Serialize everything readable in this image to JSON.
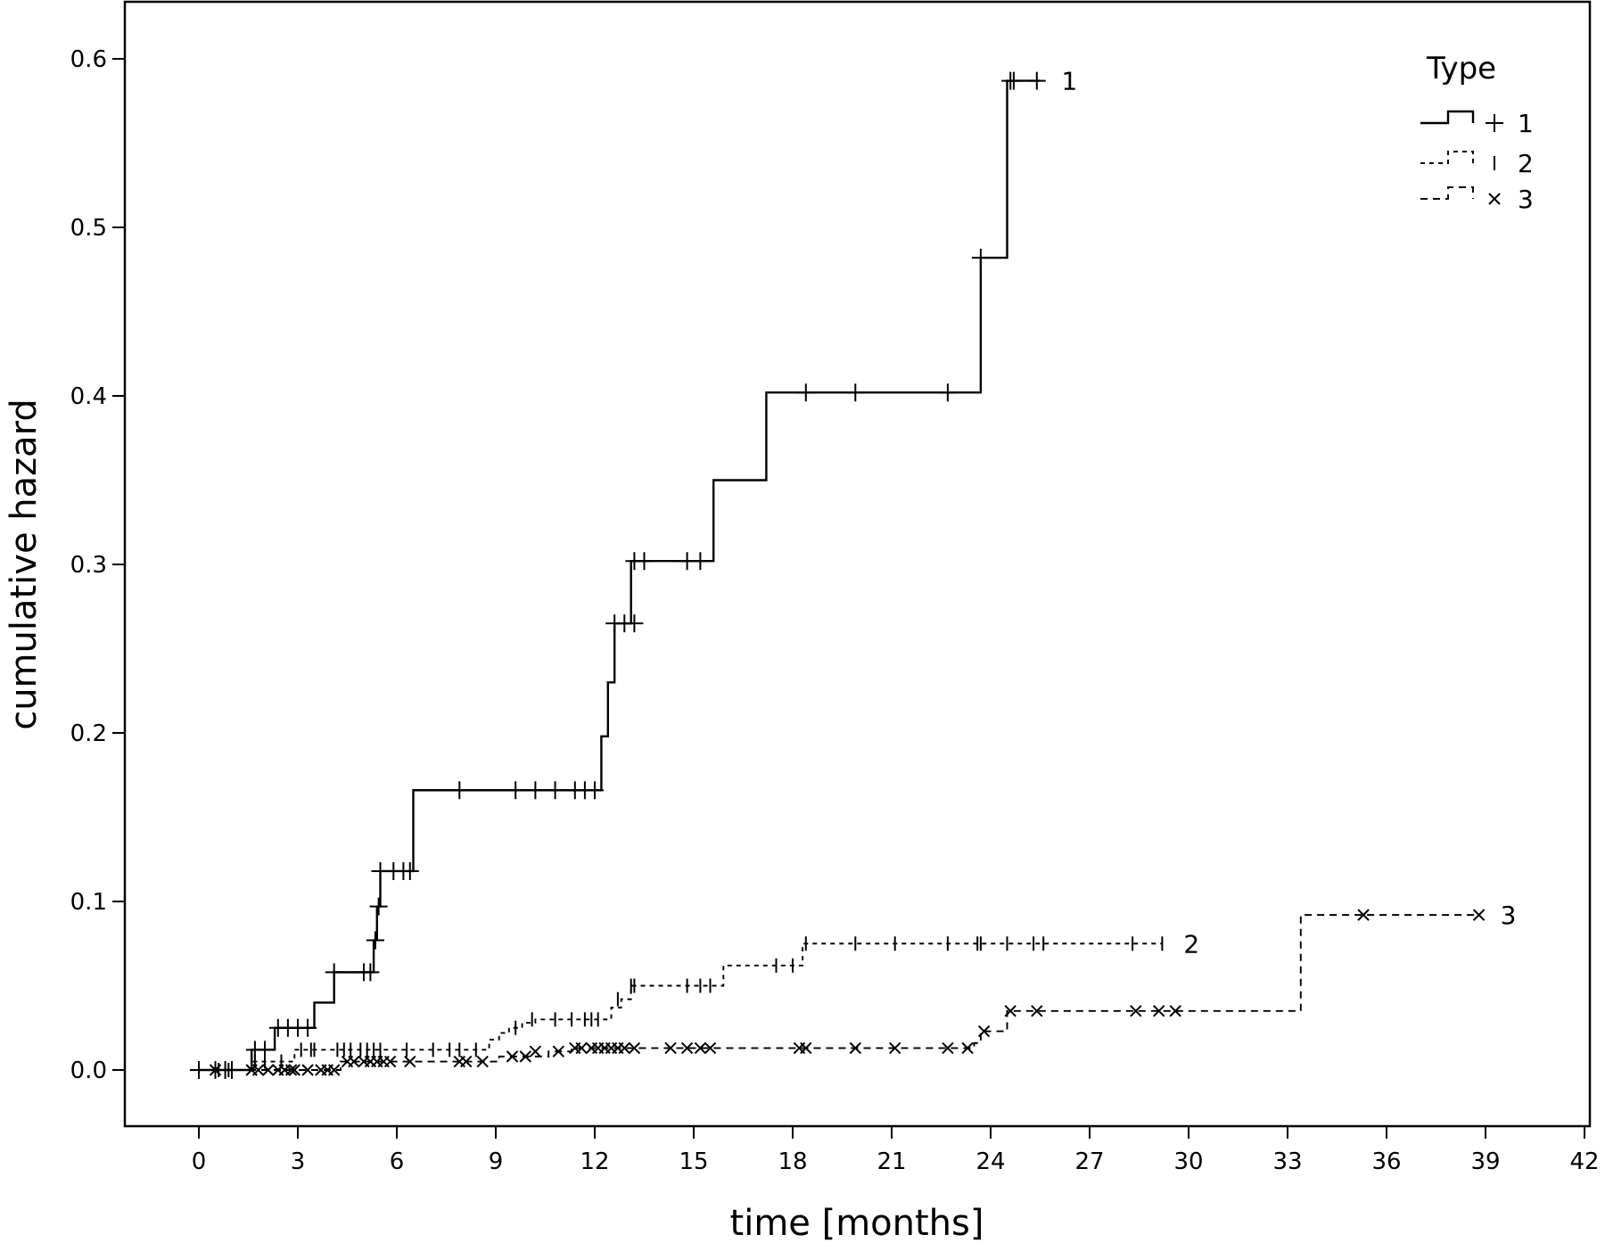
{
  "chart_data": {
    "type": "line",
    "step": true,
    "xlabel": "time [months]",
    "ylabel": "cumulative hazard",
    "xlim": [
      -4.3,
      42
    ],
    "ylim": [
      -0.033,
      0.633
    ],
    "xticks": [
      0,
      3,
      6,
      9,
      12,
      15,
      18,
      21,
      24,
      27,
      30,
      33,
      36,
      39,
      42
    ],
    "xtick_labels": [
      "0",
      "3",
      "6",
      "9",
      "12",
      "15",
      "18",
      "21",
      "24",
      "27",
      "30",
      "33",
      "36",
      "39",
      "42"
    ],
    "yticks": [
      0.0,
      0.1,
      0.2,
      0.3,
      0.4,
      0.5,
      0.6
    ],
    "ytick_labels": [
      "0.0",
      "0.1",
      "0.2",
      "0.3",
      "0.4",
      "0.5",
      "0.6"
    ],
    "grid": false,
    "legend": {
      "title": "Type",
      "position": "top-right",
      "entries": [
        {
          "label": "1",
          "line": "solid",
          "marker": "+"
        },
        {
          "label": "2",
          "line": "short-dash",
          "marker": "|"
        },
        {
          "label": "3",
          "line": "dash",
          "marker": "x"
        }
      ]
    },
    "series": [
      {
        "name": "1",
        "line": "solid",
        "marker": "+",
        "end_label": "1",
        "steps": [
          [
            0,
            0.0
          ],
          [
            1.6,
            0.012
          ],
          [
            2.3,
            0.025
          ],
          [
            3.5,
            0.04
          ],
          [
            4.1,
            0.058
          ],
          [
            5.3,
            0.077
          ],
          [
            5.4,
            0.097
          ],
          [
            5.5,
            0.118
          ],
          [
            6.5,
            0.166
          ],
          [
            12.2,
            0.198
          ],
          [
            12.4,
            0.23
          ],
          [
            12.6,
            0.265
          ],
          [
            13.1,
            0.302
          ],
          [
            15.6,
            0.35
          ],
          [
            17.2,
            0.402
          ],
          [
            23.7,
            0.482
          ],
          [
            24.5,
            0.587
          ]
        ],
        "end_x": 25.5,
        "censor_points": [
          [
            0,
            0.0
          ],
          [
            0.5,
            0.0
          ],
          [
            0.8,
            0.0
          ],
          [
            1.0,
            0.0
          ],
          [
            1.7,
            0.012
          ],
          [
            2.0,
            0.012
          ],
          [
            2.4,
            0.025
          ],
          [
            2.7,
            0.025
          ],
          [
            3.0,
            0.025
          ],
          [
            3.3,
            0.025
          ],
          [
            4.1,
            0.058
          ],
          [
            5.0,
            0.058
          ],
          [
            5.2,
            0.058
          ],
          [
            5.35,
            0.077
          ],
          [
            5.45,
            0.097
          ],
          [
            5.5,
            0.118
          ],
          [
            5.9,
            0.118
          ],
          [
            6.2,
            0.118
          ],
          [
            6.4,
            0.118
          ],
          [
            7.9,
            0.166
          ],
          [
            9.6,
            0.166
          ],
          [
            10.2,
            0.166
          ],
          [
            10.8,
            0.166
          ],
          [
            11.4,
            0.166
          ],
          [
            11.7,
            0.166
          ],
          [
            12.0,
            0.166
          ],
          [
            12.6,
            0.265
          ],
          [
            12.9,
            0.265
          ],
          [
            13.2,
            0.265
          ],
          [
            13.2,
            0.302
          ],
          [
            13.5,
            0.302
          ],
          [
            14.8,
            0.302
          ],
          [
            15.2,
            0.302
          ],
          [
            18.4,
            0.402
          ],
          [
            19.9,
            0.402
          ],
          [
            22.7,
            0.402
          ],
          [
            23.7,
            0.482
          ],
          [
            24.6,
            0.587
          ],
          [
            24.7,
            0.587
          ],
          [
            25.4,
            0.587
          ]
        ]
      },
      {
        "name": "2",
        "line": "short-dash",
        "marker": "|",
        "end_label": "2",
        "steps": [
          [
            0,
            0.0
          ],
          [
            1.6,
            0.005
          ],
          [
            2.9,
            0.012
          ],
          [
            8.8,
            0.018
          ],
          [
            9.1,
            0.022
          ],
          [
            9.4,
            0.025
          ],
          [
            9.8,
            0.028
          ],
          [
            10.2,
            0.03
          ],
          [
            12.5,
            0.037
          ],
          [
            12.8,
            0.042
          ],
          [
            13.1,
            0.05
          ],
          [
            15.9,
            0.062
          ],
          [
            18.3,
            0.075
          ]
        ],
        "end_x": 29.2,
        "censor_points": [
          [
            0.6,
            0.0
          ],
          [
            0.9,
            0.0
          ],
          [
            1.7,
            0.005
          ],
          [
            2.0,
            0.005
          ],
          [
            2.5,
            0.005
          ],
          [
            3.1,
            0.012
          ],
          [
            3.4,
            0.012
          ],
          [
            3.5,
            0.012
          ],
          [
            4.2,
            0.012
          ],
          [
            4.4,
            0.012
          ],
          [
            4.6,
            0.012
          ],
          [
            4.9,
            0.012
          ],
          [
            5.1,
            0.012
          ],
          [
            5.3,
            0.012
          ],
          [
            5.5,
            0.012
          ],
          [
            6.3,
            0.012
          ],
          [
            7.1,
            0.012
          ],
          [
            7.6,
            0.012
          ],
          [
            7.9,
            0.012
          ],
          [
            8.4,
            0.012
          ],
          [
            9.6,
            0.025
          ],
          [
            10.1,
            0.03
          ],
          [
            10.8,
            0.03
          ],
          [
            11.3,
            0.03
          ],
          [
            11.7,
            0.03
          ],
          [
            11.9,
            0.03
          ],
          [
            12.1,
            0.03
          ],
          [
            12.7,
            0.042
          ],
          [
            13.1,
            0.05
          ],
          [
            13.2,
            0.05
          ],
          [
            14.8,
            0.05
          ],
          [
            15.2,
            0.05
          ],
          [
            15.5,
            0.05
          ],
          [
            17.5,
            0.062
          ],
          [
            18.0,
            0.062
          ],
          [
            18.4,
            0.075
          ],
          [
            19.9,
            0.075
          ],
          [
            21.1,
            0.075
          ],
          [
            22.7,
            0.075
          ],
          [
            23.6,
            0.075
          ],
          [
            23.7,
            0.075
          ],
          [
            24.5,
            0.075
          ],
          [
            25.3,
            0.075
          ],
          [
            25.6,
            0.075
          ],
          [
            28.3,
            0.075
          ],
          [
            29.2,
            0.075
          ]
        ]
      },
      {
        "name": "3",
        "line": "dash",
        "marker": "x",
        "end_label": "3",
        "steps": [
          [
            0,
            0.0
          ],
          [
            4.3,
            0.005
          ],
          [
            9.1,
            0.008
          ],
          [
            10.6,
            0.011
          ],
          [
            11.3,
            0.013
          ],
          [
            23.5,
            0.016
          ],
          [
            23.7,
            0.023
          ],
          [
            24.5,
            0.035
          ],
          [
            33.4,
            0.092
          ]
        ],
        "end_x": 38.8,
        "censor_points": [
          [
            0.5,
            0.0
          ],
          [
            1.6,
            0.0
          ],
          [
            1.8,
            0.0
          ],
          [
            2.1,
            0.0
          ],
          [
            2.4,
            0.0
          ],
          [
            2.6,
            0.0
          ],
          [
            2.8,
            0.0
          ],
          [
            2.9,
            0.0
          ],
          [
            3.3,
            0.0
          ],
          [
            3.7,
            0.0
          ],
          [
            3.9,
            0.0
          ],
          [
            4.1,
            0.0
          ],
          [
            4.5,
            0.005
          ],
          [
            4.7,
            0.005
          ],
          [
            5.0,
            0.005
          ],
          [
            5.2,
            0.005
          ],
          [
            5.4,
            0.005
          ],
          [
            5.6,
            0.005
          ],
          [
            5.8,
            0.005
          ],
          [
            6.4,
            0.005
          ],
          [
            7.9,
            0.005
          ],
          [
            8.1,
            0.005
          ],
          [
            8.6,
            0.005
          ],
          [
            9.5,
            0.008
          ],
          [
            9.9,
            0.008
          ],
          [
            10.2,
            0.011
          ],
          [
            10.9,
            0.011
          ],
          [
            11.4,
            0.013
          ],
          [
            11.6,
            0.013
          ],
          [
            11.9,
            0.013
          ],
          [
            12.1,
            0.013
          ],
          [
            12.3,
            0.013
          ],
          [
            12.5,
            0.013
          ],
          [
            12.7,
            0.013
          ],
          [
            12.9,
            0.013
          ],
          [
            13.2,
            0.013
          ],
          [
            14.3,
            0.013
          ],
          [
            14.8,
            0.013
          ],
          [
            15.2,
            0.013
          ],
          [
            15.5,
            0.013
          ],
          [
            18.2,
            0.013
          ],
          [
            18.4,
            0.013
          ],
          [
            19.9,
            0.013
          ],
          [
            21.1,
            0.013
          ],
          [
            22.7,
            0.013
          ],
          [
            23.3,
            0.013
          ],
          [
            23.8,
            0.023
          ],
          [
            24.6,
            0.035
          ],
          [
            25.4,
            0.035
          ],
          [
            28.4,
            0.035
          ],
          [
            29.1,
            0.035
          ],
          [
            29.6,
            0.035
          ],
          [
            35.3,
            0.092
          ],
          [
            38.8,
            0.092
          ]
        ]
      }
    ]
  }
}
